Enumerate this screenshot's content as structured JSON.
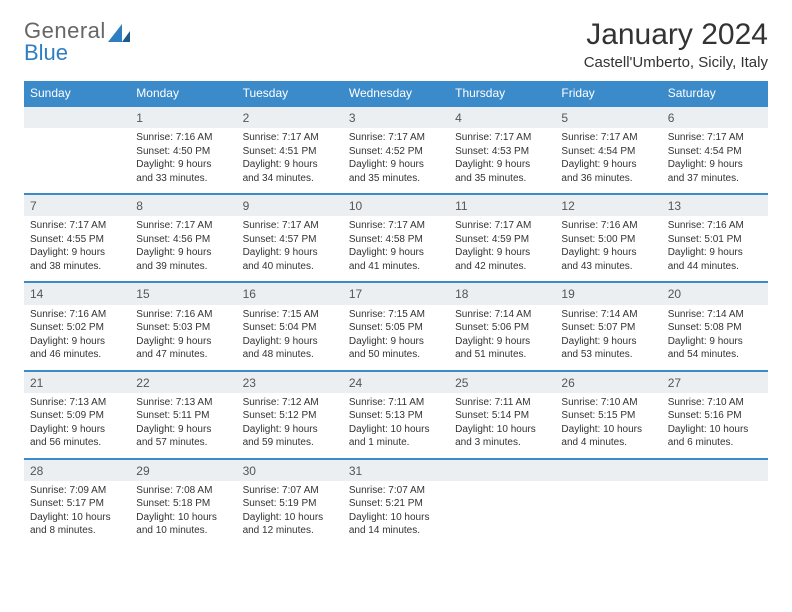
{
  "logo": {
    "text1": "General",
    "text2": "Blue"
  },
  "title": "January 2024",
  "location": "Castell'Umberto, Sicily, Italy",
  "day_headers": [
    "Sunday",
    "Monday",
    "Tuesday",
    "Wednesday",
    "Thursday",
    "Friday",
    "Saturday"
  ],
  "colors": {
    "header_bg": "#3b8aca",
    "header_fg": "#ffffff",
    "daynum_bg": "#eceff1",
    "text": "#333333",
    "logo_gray": "#666666",
    "logo_blue": "#2f7ec1"
  },
  "weeks": [
    {
      "nums": [
        "",
        "1",
        "2",
        "3",
        "4",
        "5",
        "6"
      ],
      "cells": [
        null,
        {
          "sunrise": "7:16 AM",
          "sunset": "4:50 PM",
          "daylight": "9 hours and 33 minutes."
        },
        {
          "sunrise": "7:17 AM",
          "sunset": "4:51 PM",
          "daylight": "9 hours and 34 minutes."
        },
        {
          "sunrise": "7:17 AM",
          "sunset": "4:52 PM",
          "daylight": "9 hours and 35 minutes."
        },
        {
          "sunrise": "7:17 AM",
          "sunset": "4:53 PM",
          "daylight": "9 hours and 35 minutes."
        },
        {
          "sunrise": "7:17 AM",
          "sunset": "4:54 PM",
          "daylight": "9 hours and 36 minutes."
        },
        {
          "sunrise": "7:17 AM",
          "sunset": "4:54 PM",
          "daylight": "9 hours and 37 minutes."
        }
      ]
    },
    {
      "nums": [
        "7",
        "8",
        "9",
        "10",
        "11",
        "12",
        "13"
      ],
      "cells": [
        {
          "sunrise": "7:17 AM",
          "sunset": "4:55 PM",
          "daylight": "9 hours and 38 minutes."
        },
        {
          "sunrise": "7:17 AM",
          "sunset": "4:56 PM",
          "daylight": "9 hours and 39 minutes."
        },
        {
          "sunrise": "7:17 AM",
          "sunset": "4:57 PM",
          "daylight": "9 hours and 40 minutes."
        },
        {
          "sunrise": "7:17 AM",
          "sunset": "4:58 PM",
          "daylight": "9 hours and 41 minutes."
        },
        {
          "sunrise": "7:17 AM",
          "sunset": "4:59 PM",
          "daylight": "9 hours and 42 minutes."
        },
        {
          "sunrise": "7:16 AM",
          "sunset": "5:00 PM",
          "daylight": "9 hours and 43 minutes."
        },
        {
          "sunrise": "7:16 AM",
          "sunset": "5:01 PM",
          "daylight": "9 hours and 44 minutes."
        }
      ]
    },
    {
      "nums": [
        "14",
        "15",
        "16",
        "17",
        "18",
        "19",
        "20"
      ],
      "cells": [
        {
          "sunrise": "7:16 AM",
          "sunset": "5:02 PM",
          "daylight": "9 hours and 46 minutes."
        },
        {
          "sunrise": "7:16 AM",
          "sunset": "5:03 PM",
          "daylight": "9 hours and 47 minutes."
        },
        {
          "sunrise": "7:15 AM",
          "sunset": "5:04 PM",
          "daylight": "9 hours and 48 minutes."
        },
        {
          "sunrise": "7:15 AM",
          "sunset": "5:05 PM",
          "daylight": "9 hours and 50 minutes."
        },
        {
          "sunrise": "7:14 AM",
          "sunset": "5:06 PM",
          "daylight": "9 hours and 51 minutes."
        },
        {
          "sunrise": "7:14 AM",
          "sunset": "5:07 PM",
          "daylight": "9 hours and 53 minutes."
        },
        {
          "sunrise": "7:14 AM",
          "sunset": "5:08 PM",
          "daylight": "9 hours and 54 minutes."
        }
      ]
    },
    {
      "nums": [
        "21",
        "22",
        "23",
        "24",
        "25",
        "26",
        "27"
      ],
      "cells": [
        {
          "sunrise": "7:13 AM",
          "sunset": "5:09 PM",
          "daylight": "9 hours and 56 minutes."
        },
        {
          "sunrise": "7:13 AM",
          "sunset": "5:11 PM",
          "daylight": "9 hours and 57 minutes."
        },
        {
          "sunrise": "7:12 AM",
          "sunset": "5:12 PM",
          "daylight": "9 hours and 59 minutes."
        },
        {
          "sunrise": "7:11 AM",
          "sunset": "5:13 PM",
          "daylight": "10 hours and 1 minute."
        },
        {
          "sunrise": "7:11 AM",
          "sunset": "5:14 PM",
          "daylight": "10 hours and 3 minutes."
        },
        {
          "sunrise": "7:10 AM",
          "sunset": "5:15 PM",
          "daylight": "10 hours and 4 minutes."
        },
        {
          "sunrise": "7:10 AM",
          "sunset": "5:16 PM",
          "daylight": "10 hours and 6 minutes."
        }
      ]
    },
    {
      "nums": [
        "28",
        "29",
        "30",
        "31",
        "",
        "",
        ""
      ],
      "cells": [
        {
          "sunrise": "7:09 AM",
          "sunset": "5:17 PM",
          "daylight": "10 hours and 8 minutes."
        },
        {
          "sunrise": "7:08 AM",
          "sunset": "5:18 PM",
          "daylight": "10 hours and 10 minutes."
        },
        {
          "sunrise": "7:07 AM",
          "sunset": "5:19 PM",
          "daylight": "10 hours and 12 minutes."
        },
        {
          "sunrise": "7:07 AM",
          "sunset": "5:21 PM",
          "daylight": "10 hours and 14 minutes."
        },
        null,
        null,
        null
      ]
    }
  ],
  "labels": {
    "sunrise": "Sunrise:",
    "sunset": "Sunset:",
    "daylight": "Daylight:"
  }
}
